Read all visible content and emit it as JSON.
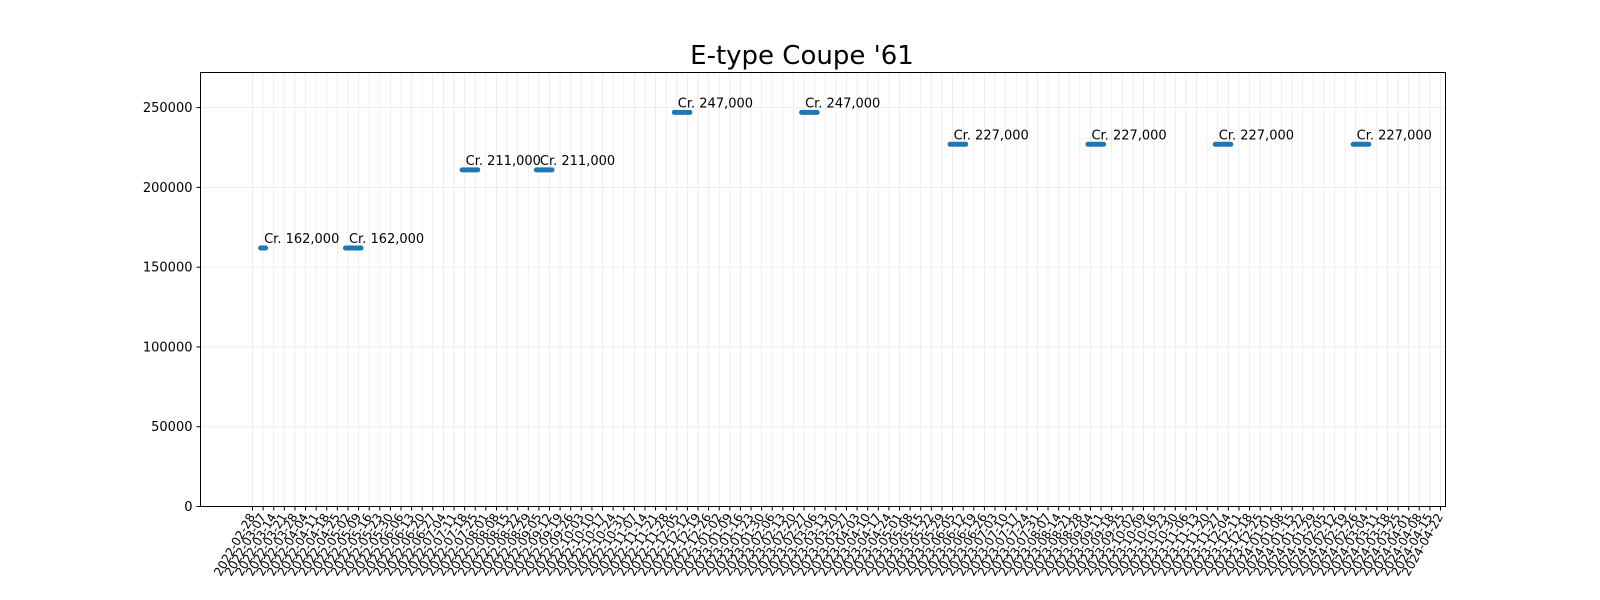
{
  "chart_data": {
    "type": "line",
    "title": "E-type Coupe '61",
    "xlabel": "",
    "ylabel": "",
    "ylim": [
      0,
      272000
    ],
    "yticks": [
      0,
      50000,
      100000,
      150000,
      200000,
      250000
    ],
    "grid": true,
    "legend": "none",
    "color": "#1f77b4",
    "x_ticks": {
      "start": "2022-02-28",
      "end": "2024-04-22",
      "interval_days": 7
    },
    "segments": [
      {
        "start": "2022-03-07",
        "end": "2022-03-07",
        "value": 162000,
        "label": "Cr. 162,000"
      },
      {
        "start": "2022-05-02",
        "end": "2022-05-09",
        "value": 162000,
        "label": "Cr. 162,000"
      },
      {
        "start": "2022-07-18",
        "end": "2022-07-25",
        "value": 211000,
        "label": "Cr. 211,000"
      },
      {
        "start": "2022-09-05",
        "end": "2022-09-12",
        "value": 211000,
        "label": "Cr. 211,000"
      },
      {
        "start": "2022-12-05",
        "end": "2022-12-12",
        "value": 247000,
        "label": "Cr. 247,000"
      },
      {
        "start": "2023-02-27",
        "end": "2023-03-06",
        "value": 247000,
        "label": "Cr. 247,000"
      },
      {
        "start": "2023-06-05",
        "end": "2023-06-12",
        "value": 227000,
        "label": "Cr. 227,000"
      },
      {
        "start": "2023-09-04",
        "end": "2023-09-11",
        "value": 227000,
        "label": "Cr. 227,000"
      },
      {
        "start": "2023-11-27",
        "end": "2023-12-04",
        "value": 227000,
        "label": "Cr. 227,000"
      },
      {
        "start": "2024-02-26",
        "end": "2024-03-04",
        "value": 227000,
        "label": "Cr. 227,000"
      }
    ]
  }
}
